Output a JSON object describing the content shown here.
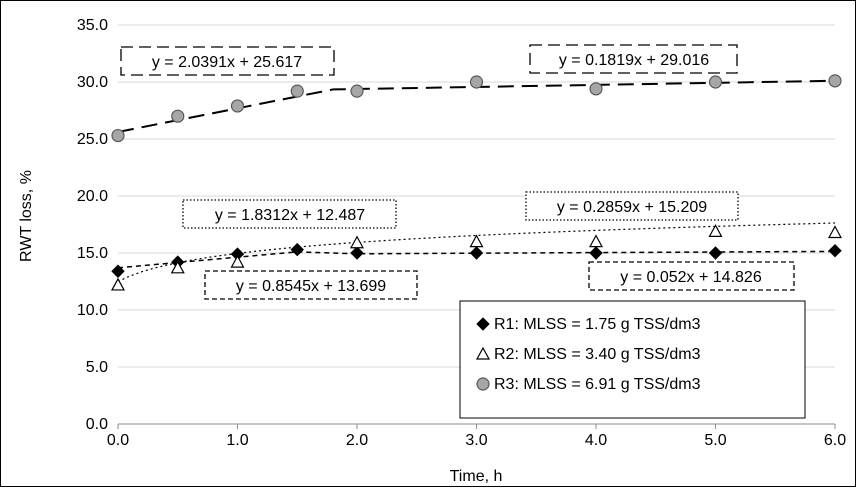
{
  "chart_data": {
    "type": "scatter",
    "title": "",
    "xlabel": "Time, h",
    "ylabel": "RWT loss, %",
    "xlim": [
      0,
      6
    ],
    "ylim": [
      0,
      35
    ],
    "x_ticks": [
      0,
      1,
      2,
      3,
      4,
      5,
      6
    ],
    "x_tick_labels": [
      "0.0",
      "1.0",
      "2.0",
      "3.0",
      "4.0",
      "5.0",
      "6.0"
    ],
    "y_ticks": [
      0,
      5,
      10,
      15,
      20,
      25,
      30,
      35
    ],
    "y_tick_labels": [
      "0.0",
      "5.0",
      "10.0",
      "15.0",
      "20.0",
      "25.0",
      "30.0",
      "35.0"
    ],
    "grid": "horizontal",
    "legend_position": "bottom-right",
    "series": [
      {
        "name": "R1: MLSS = 1.75 g TSS/dm3",
        "marker": "diamond",
        "color": "#000000",
        "x": [
          0,
          0.5,
          1,
          1.5,
          2,
          3,
          4,
          5,
          6
        ],
        "y": [
          13.4,
          14.2,
          14.9,
          15.3,
          15.0,
          15.0,
          15.0,
          15.0,
          15.2
        ]
      },
      {
        "name": "R2: MLSS = 3.40 g TSS/dm3",
        "marker": "triangle-open",
        "color": "#000000",
        "x": [
          0,
          0.5,
          1,
          2,
          3,
          4,
          5,
          6
        ],
        "y": [
          12.2,
          13.7,
          14.2,
          15.9,
          16.0,
          16.0,
          16.9,
          16.8
        ]
      },
      {
        "name": "R3: MLSS = 6.91 g TSS/dm3",
        "marker": "circle-gray",
        "color": "#a6a6a6",
        "x": [
          0,
          0.5,
          1,
          1.5,
          2,
          3,
          4,
          5,
          6
        ],
        "y": [
          25.3,
          27.0,
          27.9,
          29.2,
          29.2,
          30.0,
          29.4,
          30.0,
          30.1
        ]
      }
    ],
    "trendlines": [
      {
        "equation": "y = 2.0391x + 25.617",
        "slope": 2.0391,
        "intercept": 25.617,
        "x_range": [
          0,
          1.8
        ],
        "style": "long-dash",
        "label_style": "long-dash"
      },
      {
        "equation": "y = 0.1819x + 29.016",
        "slope": 0.1819,
        "intercept": 29.016,
        "x_range": [
          1.8,
          6
        ],
        "style": "long-dash",
        "label_style": "long-dash"
      },
      {
        "equation": "y = 1.8312x + 12.487",
        "x_range": [
          0,
          2
        ],
        "style": "dotted",
        "label_style": "dotted"
      },
      {
        "equation": "y = 0.2859x + 15.209",
        "x_range": [
          2,
          6
        ],
        "style": "dotted",
        "label_style": "dotted"
      },
      {
        "equation": "y = 0.8545x + 13.699",
        "slope": 0.8545,
        "intercept": 13.699,
        "x_range": [
          0,
          1.5
        ],
        "style": "short-dash",
        "label_style": "short-dash"
      },
      {
        "equation": "y = 0.052x + 14.826",
        "slope": 0.052,
        "intercept": 14.826,
        "x_range": [
          1.5,
          6
        ],
        "style": "short-dash",
        "label_style": "short-dash"
      }
    ]
  }
}
